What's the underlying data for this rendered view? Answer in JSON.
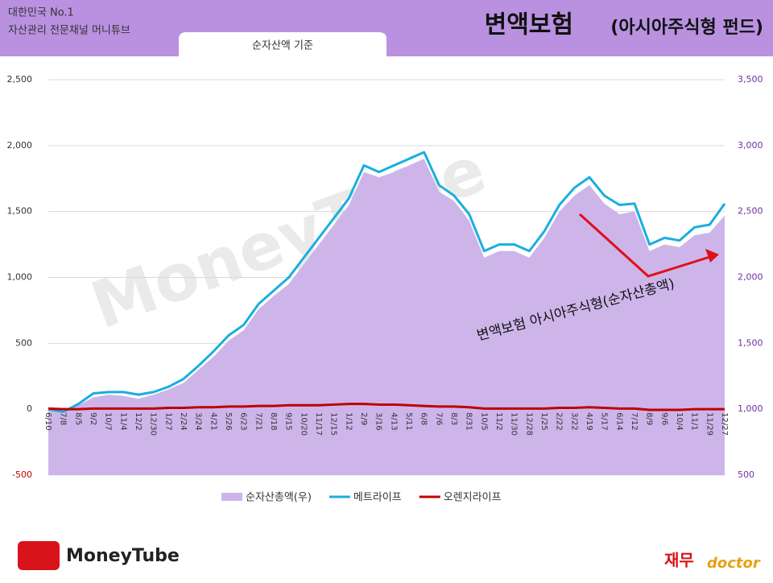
{
  "header": {
    "brand_line1": "대한민국 No.1",
    "brand_line2": "자산관리 전문채널 머니튜브",
    "tab": "순자산액 기준",
    "title": "변액보험",
    "title_sub": "(아시아주식형 펀드)"
  },
  "footer": {
    "logo_left": "MoneyTube",
    "logo_right_1": "재무",
    "logo_right_2": "doctor"
  },
  "watermark": "MoneyTube",
  "chart_data": {
    "type": "line",
    "annotation": "변액보험 아시아주식형(순자산총액)",
    "categories": [
      "6/10",
      "7/8",
      "8/5",
      "9/2",
      "10/7",
      "11/4",
      "12/2",
      "12/30",
      "1/27",
      "2/24",
      "3/24",
      "4/21",
      "5/26",
      "6/23",
      "7/21",
      "8/18",
      "9/15",
      "10/20",
      "11/17",
      "12/15",
      "1/12",
      "2/9",
      "3/16",
      "4/13",
      "5/11",
      "6/8",
      "7/6",
      "8/3",
      "8/31",
      "10/5",
      "11/2",
      "11/30",
      "12/28",
      "1/25",
      "2/22",
      "3/22",
      "4/19",
      "5/17",
      "6/14",
      "7/12",
      "8/9",
      "9/6",
      "10/4",
      "11/1",
      "11/29",
      "12/27"
    ],
    "series": [
      {
        "name": "순자산총액(우)",
        "type": "area",
        "axis": "y2",
        "color": "#cdb5ea",
        "values": [
          1000,
          980,
          1030,
          1090,
          1110,
          1100,
          1080,
          1110,
          1150,
          1200,
          1300,
          1400,
          1520,
          1600,
          1760,
          1860,
          1950,
          2100,
          2250,
          2400,
          2550,
          2800,
          2760,
          2800,
          2850,
          2900,
          2650,
          2580,
          2430,
          2150,
          2200,
          2200,
          2150,
          2300,
          2500,
          2620,
          2700,
          2560,
          2480,
          2500,
          2200,
          2250,
          2230,
          2320,
          2340,
          2470
        ]
      },
      {
        "name": "메트라이프",
        "type": "line",
        "color": "#1aaee0",
        "values": [
          0,
          -20,
          40,
          120,
          130,
          130,
          110,
          130,
          170,
          230,
          330,
          440,
          560,
          640,
          800,
          900,
          1000,
          1150,
          1300,
          1450,
          1600,
          1850,
          1800,
          1850,
          1900,
          1950,
          1700,
          1620,
          1480,
          1200,
          1250,
          1250,
          1200,
          1350,
          1550,
          1680,
          1760,
          1620,
          1550,
          1560,
          1250,
          1300,
          1280,
          1380,
          1400,
          1560
        ]
      },
      {
        "name": "오렌지라이프",
        "type": "line",
        "color": "#c00000",
        "values": [
          5,
          0,
          0,
          5,
          5,
          5,
          5,
          5,
          10,
          10,
          15,
          15,
          20,
          20,
          25,
          25,
          30,
          30,
          30,
          35,
          40,
          40,
          35,
          35,
          30,
          25,
          20,
          20,
          15,
          5,
          5,
          5,
          5,
          5,
          10,
          10,
          15,
          10,
          5,
          5,
          -5,
          -5,
          -5,
          0,
          0,
          0
        ]
      }
    ],
    "ylim": [
      -500,
      2500
    ],
    "yticks": [
      {
        "value": -500,
        "label": "-500"
      },
      0,
      500,
      {
        "value": 1000,
        "label": "1,000"
      },
      {
        "value": 1500,
        "label": "1,500"
      },
      {
        "value": 2000,
        "label": "2,000"
      },
      {
        "value": 2500,
        "label": "2,500"
      }
    ],
    "y2lim": [
      500,
      3500
    ],
    "y2ticks": [
      500,
      {
        "value": 1000,
        "label": "1,000"
      },
      {
        "value": 1500,
        "label": "1,500"
      },
      {
        "value": 2000,
        "label": "2,000"
      },
      {
        "value": 2500,
        "label": "2,500"
      },
      {
        "value": 3000,
        "label": "3,000"
      },
      {
        "value": 3500,
        "label": "3,500"
      }
    ],
    "grid": true
  }
}
